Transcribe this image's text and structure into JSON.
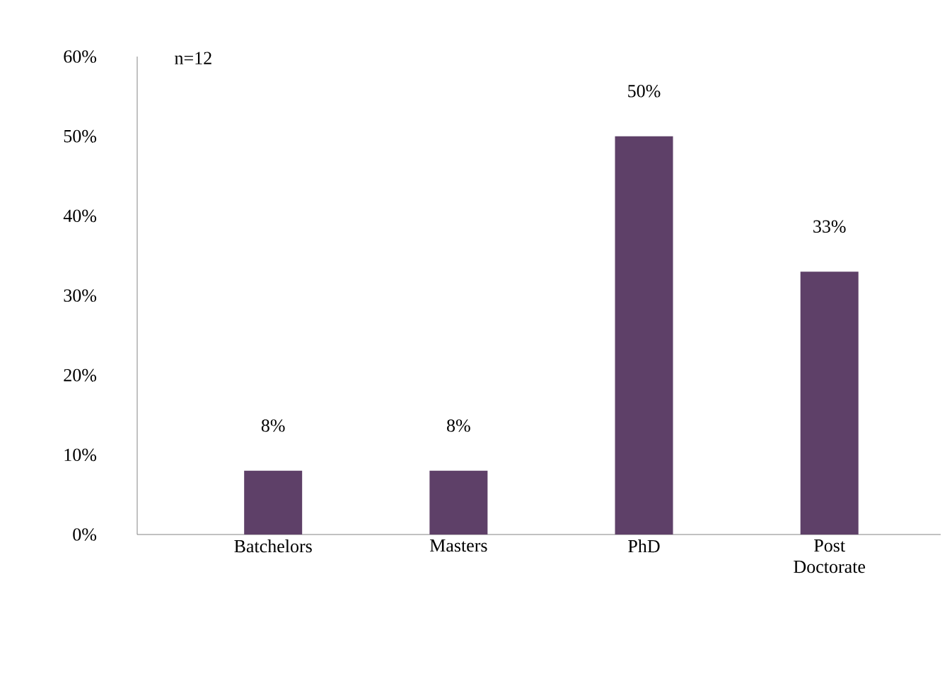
{
  "chart_data": {
    "type": "bar",
    "categories": [
      "Batchelors",
      "Masters",
      "PhD",
      "Post Doctorate"
    ],
    "values": [
      8,
      8,
      50,
      33
    ],
    "value_labels": [
      "8%",
      "8%",
      "50%",
      "33%"
    ],
    "color": "#5e4068",
    "ylim": [
      0,
      60
    ],
    "yticks": [
      {
        "value": 0,
        "label": "0%"
      },
      {
        "value": 10,
        "label": "10%"
      },
      {
        "value": 20,
        "label": "20%"
      },
      {
        "value": 30,
        "label": "30%"
      },
      {
        "value": 40,
        "label": "40%"
      },
      {
        "value": 50,
        "label": "50%"
      },
      {
        "value": 60,
        "label": "60%"
      }
    ],
    "annotations": [
      "n=12"
    ],
    "grid": false
  }
}
